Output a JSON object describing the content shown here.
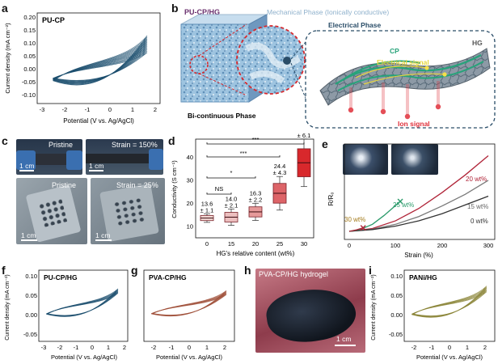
{
  "colors": {
    "cv_dark_blue": "#1c4f6e",
    "cv_brown": "#a0503a",
    "cv_olive": "#8a8436",
    "box_red": "#d8282c",
    "hg_blue": "#5f8fb8",
    "electrical_phase": "#2a4d68",
    "cp_green": "#27a37a",
    "ion_red": "#e0303a",
    "signal_yellow": "#e7d63c"
  },
  "panel_a": {
    "letter": "a",
    "label": "PU-CP",
    "ylabel": "Current density (mA cm⁻²)",
    "xlabel": "Potential (V vs. Ag/AgCl)",
    "xticks": [
      "-3",
      "-2",
      "-1",
      "0",
      "1",
      "2"
    ],
    "yticks": [
      "0.20",
      "0.15",
      "0.10",
      "0.05",
      "0.00",
      "-0.05",
      "-0.10"
    ]
  },
  "panel_b": {
    "letter": "b",
    "title": "PU-CP/HG",
    "mechanical_phase": "Mechanical Phase (Ionically conductive)",
    "electrical_phase": "Electrical Phase",
    "bicontinuous": "Bi-continuous Phase",
    "cp": "CP",
    "hg": "HG",
    "electrical_signal": "Electrical signal",
    "ion_signal": "Ion signal"
  },
  "panel_c": {
    "letter": "c",
    "top_left": "Pristine",
    "top_right": "Strain = 150%",
    "bottom_left": "Pristine",
    "bottom_right": "Strain = 25%",
    "scale": "1 cm"
  },
  "panel_d": {
    "letter": "d",
    "ylabel": "Conductivity (S cm⁻¹)",
    "xlabel": "HG's relative content (wt%)",
    "xticks": [
      "0",
      "15",
      "20",
      "25",
      "30"
    ],
    "yticks": [
      "10",
      "20",
      "30",
      "40"
    ],
    "labels_top": [
      "13.6",
      "14.0",
      "16.3",
      "24.4",
      "37.7"
    ],
    "labels_bottom": [
      "± 1.1",
      "± 2.1",
      "± 2.2",
      "± 4.3",
      "± 6.1"
    ],
    "sig_ns": "NS",
    "sig_1": "*",
    "sig_3a": "***",
    "sig_3b": "***"
  },
  "panel_e": {
    "letter": "e",
    "ylabel": "R/R₀",
    "xlabel": "Strain (%)",
    "xticks": [
      "0",
      "100",
      "200",
      "300"
    ],
    "label_20": "20 wt%",
    "label_15": "15 wt%",
    "label_0": "0 wt%",
    "label_25": "25 wt%",
    "label_30": "30 wt%"
  },
  "panel_f": {
    "letter": "f",
    "label": "PU-CP/HG",
    "ylabel": "Current density (mA cm⁻²)",
    "xlabel": "Potential (V vs. Ag/AgCl)",
    "xticks": [
      "-3",
      "-2",
      "-1",
      "0",
      "1",
      "2"
    ],
    "yticks": [
      "0.10",
      "0.05",
      "0.00",
      "-0.05"
    ]
  },
  "panel_g": {
    "letter": "g",
    "label": "PVA-CP/HG",
    "xlabel": "Potential (V vs. Ag/AgCl)",
    "xticks": [
      "-2",
      "-1",
      "0",
      "1",
      "2"
    ]
  },
  "panel_h": {
    "letter": "h",
    "label": "PVA-CP/HG hydrogel",
    "scale": "1 cm"
  },
  "panel_i": {
    "letter": "i",
    "label": "PANi/HG",
    "ylabel": "Current density (mA cm⁻²)",
    "xlabel": "Potential (V vs. Ag/AgCl)",
    "xticks": [
      "-2",
      "-1",
      "0",
      "1",
      "2"
    ],
    "yticks": [
      "0.10",
      "0.05",
      "0.00",
      "-0.05"
    ]
  },
  "chart_data": [
    {
      "panel": "d",
      "type": "box",
      "categories": [
        "0",
        "15",
        "20",
        "25",
        "30"
      ],
      "values": [
        13.6,
        14.0,
        16.3,
        24.4,
        37.7
      ],
      "errors": [
        1.1,
        2.1,
        2.2,
        4.3,
        6.1
      ],
      "ylim": [
        5,
        48
      ]
    },
    {
      "panel": "e",
      "type": "line",
      "xlim": [
        0,
        320
      ],
      "series": [
        {
          "name": "20 wt%",
          "color": "#b02438",
          "x": [
            0,
            50,
            100,
            150,
            200,
            250,
            300
          ],
          "y": [
            1.0,
            1.08,
            1.3,
            1.65,
            2.1,
            2.6,
            3.15
          ]
        },
        {
          "name": "15 wt%",
          "color": "#7a7a7a",
          "x": [
            0,
            50,
            100,
            150,
            200,
            250,
            300
          ],
          "y": [
            1.0,
            1.06,
            1.2,
            1.42,
            1.72,
            2.05,
            2.45
          ]
        },
        {
          "name": "0 wt%",
          "color": "#333333",
          "x": [
            0,
            50,
            100,
            150,
            200,
            250,
            300
          ],
          "y": [
            1.0,
            1.05,
            1.15,
            1.3,
            1.5,
            1.75,
            2.0
          ]
        },
        {
          "name": "25 wt%",
          "color": "#2a9a6a",
          "x": [
            0,
            25,
            50,
            75,
            110
          ],
          "y": [
            1.0,
            1.06,
            1.2,
            1.45,
            1.85
          ]
        },
        {
          "name": "30 wt%",
          "color": "#b02438",
          "x": [
            0,
            15,
            30
          ],
          "y": [
            1.0,
            1.04,
            1.1
          ]
        }
      ]
    }
  ]
}
